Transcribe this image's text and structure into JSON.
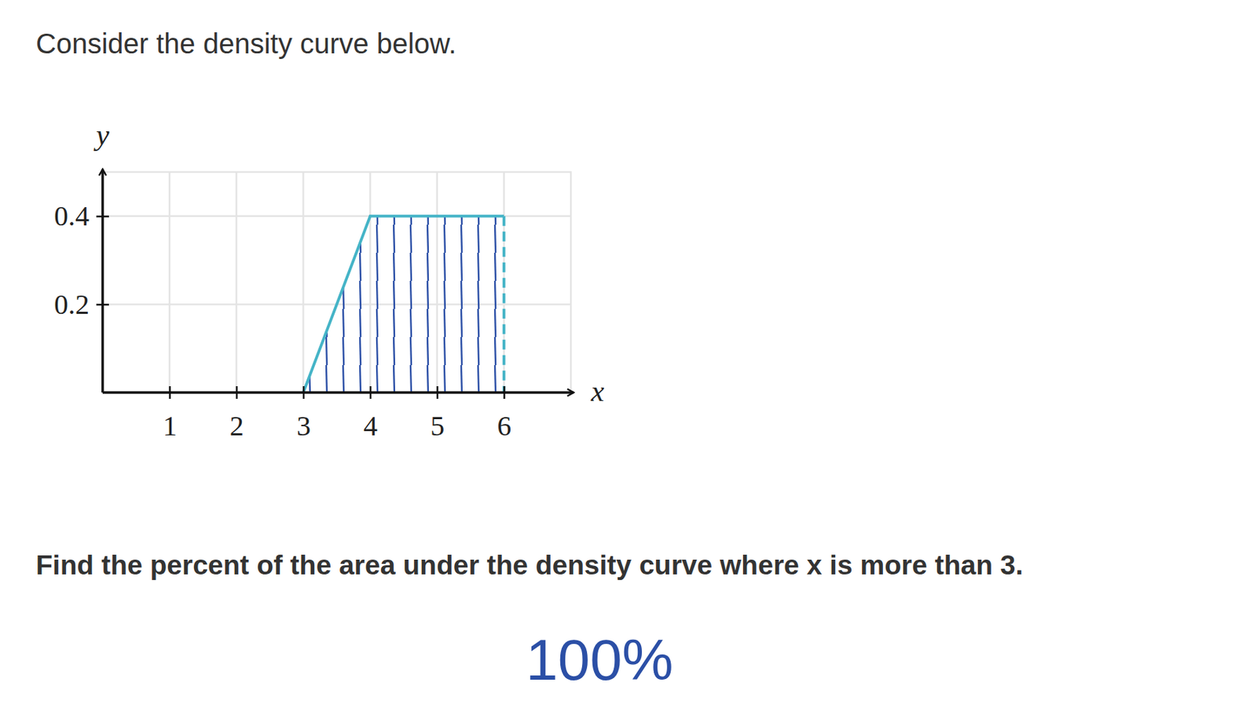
{
  "chart_data": {
    "type": "line",
    "title": "Consider the density curve below.",
    "subtitle": "Find the percent of the area under the density curve where x is more than 3.",
    "annotation": "100%",
    "x_label": "x",
    "y_label": "y",
    "x": [
      3,
      4,
      6
    ],
    "values": [
      0,
      0.4,
      0.4
    ],
    "color": "#45b4c7",
    "xlim": [
      0,
      7
    ],
    "xticks": [
      1,
      2,
      3,
      4,
      5,
      6
    ],
    "ylim": [
      0,
      0.5
    ],
    "yticks": [
      0.2,
      0.4
    ],
    "grid": true
  }
}
